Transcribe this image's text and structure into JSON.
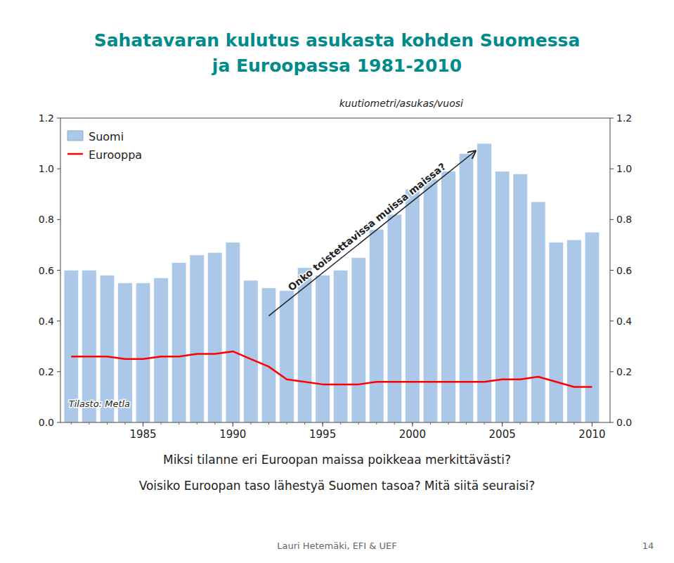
{
  "chart_data": {
    "type": "bar",
    "title": [
      "Sahatavaran kulutus asukasta kohden Suomessa",
      "ja Euroopassa 1981-2010"
    ],
    "y_label": "kuutiometri/asukas/vuosi",
    "source": "Tilasto: Metla",
    "annotations": [
      {
        "text": "Onko toistettavissa muissa maissa?"
      }
    ],
    "questions": [
      "Miksi tilanne eri Euroopan maissa poikkeaa merkittävästi?",
      "Voisiko Euroopan taso lähestyä Suomen tasoa? Mitä siitä seuraisi?"
    ],
    "footer": [
      "Lauri Hetemäki, EFI & UEF",
      "14"
    ],
    "x": [
      1981,
      1982,
      1983,
      1984,
      1985,
      1986,
      1987,
      1988,
      1989,
      1990,
      1991,
      1992,
      1993,
      1994,
      1995,
      1996,
      1997,
      1998,
      1999,
      2000,
      2001,
      2002,
      2003,
      2004,
      2005,
      2006,
      2007,
      2008,
      2009,
      2010
    ],
    "series": [
      {
        "name": "Suomi",
        "type": "bar",
        "color": "#ABC8E8",
        "values": [
          0.6,
          0.6,
          0.58,
          0.55,
          0.55,
          0.57,
          0.63,
          0.66,
          0.67,
          0.71,
          0.56,
          0.53,
          0.52,
          0.61,
          0.58,
          0.6,
          0.65,
          0.76,
          0.82,
          0.92,
          0.96,
          0.99,
          1.06,
          1.1,
          0.99,
          0.98,
          0.87,
          0.71,
          0.72,
          0.75
        ]
      },
      {
        "name": "Eurooppa",
        "type": "line",
        "color": "#FF0000",
        "values": [
          0.26,
          0.26,
          0.26,
          0.25,
          0.25,
          0.26,
          0.26,
          0.27,
          0.27,
          0.28,
          0.25,
          0.22,
          0.17,
          0.16,
          0.15,
          0.15,
          0.15,
          0.16,
          0.16,
          0.16,
          0.16,
          0.16,
          0.16,
          0.16,
          0.17,
          0.17,
          0.18,
          0.16,
          0.14,
          0.14
        ]
      }
    ],
    "xlim": [
      1980.4,
      2011.0
    ],
    "xticks": [
      1985,
      1990,
      1995,
      2000,
      2005,
      2010
    ],
    "ylim": [
      0.0,
      1.2
    ],
    "yticks": [
      {
        "value": 0.0,
        "label": "0.0"
      },
      {
        "value": 0.2,
        "label": "0.2"
      },
      {
        "value": 0.4,
        "label": "0.4"
      },
      {
        "value": 0.6,
        "label": "0.6"
      },
      {
        "value": 0.8,
        "label": "0.8"
      },
      {
        "value": 1.0,
        "label": "1.0"
      },
      {
        "value": 1.2,
        "label": "1.2"
      }
    ],
    "y2lim": [
      0.0,
      1.2
    ],
    "y2ticks": [
      {
        "value": 0.0,
        "label": "0.0"
      },
      {
        "value": 0.2,
        "label": "0.2"
      },
      {
        "value": 0.4,
        "label": "0.4"
      },
      {
        "value": 0.6,
        "label": "0.6"
      },
      {
        "value": 0.8,
        "label": "0.8"
      },
      {
        "value": 1.0,
        "label": "1.0"
      },
      {
        "value": 1.2,
        "label": "1.2"
      }
    ],
    "legend": "upper left",
    "grid": false
  }
}
